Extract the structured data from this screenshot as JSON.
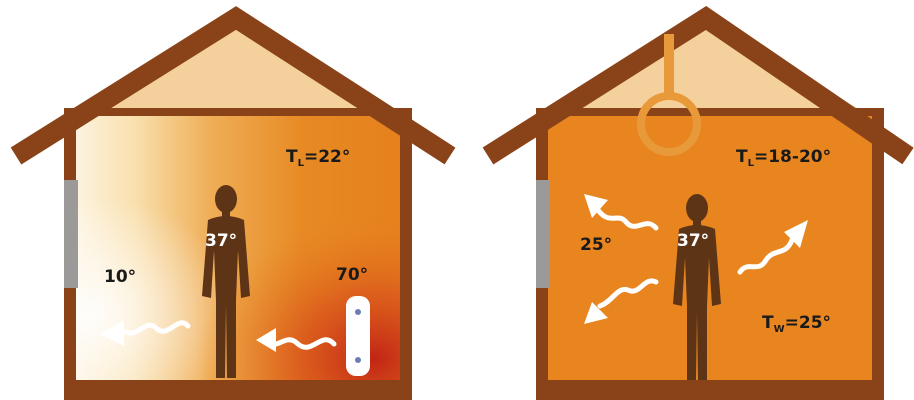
{
  "left_house": {
    "air_temp": {
      "prefix": "T",
      "subscript": "L",
      "value": "=22°"
    },
    "body_temp": "37°",
    "wall_temp": "10°",
    "heater_temp": "70°"
  },
  "right_house": {
    "air_temp": {
      "prefix": "T",
      "subscript": "L",
      "value": "=18-20°"
    },
    "body_temp": "37°",
    "radiant_temp": "25°",
    "wall_temp": {
      "prefix": "T",
      "subscript": "W",
      "value": "=25°"
    }
  },
  "colors": {
    "roof": "#8a4318",
    "attic": "#f4d19c",
    "interior_warm": "#e8851f",
    "interior_cool": "#fdf3df",
    "heater_hot": "#c22515",
    "window": "#9c9a98",
    "person": "#5e3416",
    "arrow": "#ffffff",
    "ceiling_element": "#e89a3a"
  }
}
